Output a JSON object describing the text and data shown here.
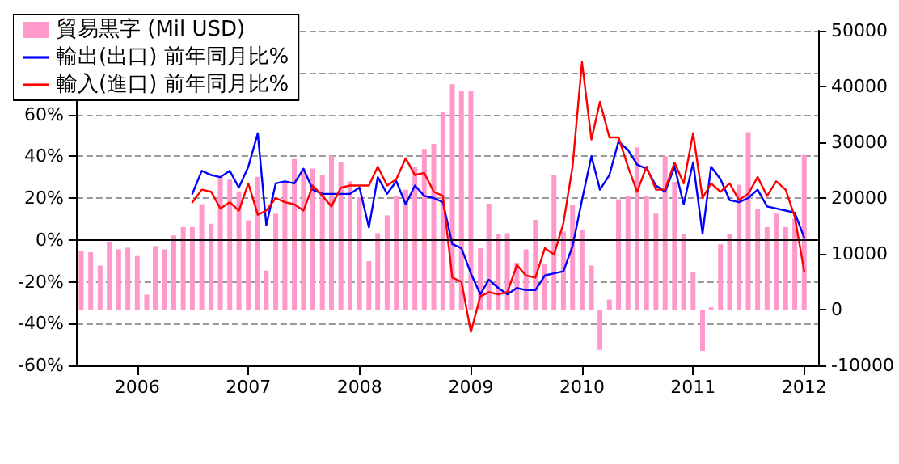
{
  "chart_data": {
    "type": "line",
    "x": [
      "2005-07",
      "2005-08",
      "2005-09",
      "2005-10",
      "2005-11",
      "2005-12",
      "2006-01",
      "2006-02",
      "2006-03",
      "2006-04",
      "2006-05",
      "2006-06",
      "2006-07",
      "2006-08",
      "2006-09",
      "2006-10",
      "2006-11",
      "2006-12",
      "2007-01",
      "2007-02",
      "2007-03",
      "2007-04",
      "2007-05",
      "2007-06",
      "2007-07",
      "2007-08",
      "2007-09",
      "2007-10",
      "2007-11",
      "2007-12",
      "2008-01",
      "2008-02",
      "2008-03",
      "2008-04",
      "2008-05",
      "2008-06",
      "2008-07",
      "2008-08",
      "2008-09",
      "2008-10",
      "2008-11",
      "2008-12",
      "2009-01",
      "2009-02",
      "2009-03",
      "2009-04",
      "2009-05",
      "2009-06",
      "2009-07",
      "2009-08",
      "2009-09",
      "2009-10",
      "2009-11",
      "2009-12",
      "2010-01",
      "2010-02",
      "2010-03",
      "2010-04",
      "2010-05",
      "2010-06",
      "2010-07",
      "2010-08",
      "2010-09",
      "2010-10",
      "2010-11",
      "2010-12",
      "2011-01",
      "2011-02",
      "2011-03",
      "2011-04",
      "2011-05",
      "2011-06",
      "2011-07",
      "2011-08",
      "2011-09",
      "2011-10",
      "2011-11",
      "2011-12",
      "2012-01"
    ],
    "series": [
      {
        "name": "貿易黒字 (Mil USD)",
        "type": "bar",
        "axis": "y2",
        "color": "#ff99cc",
        "values": [
          10600,
          10300,
          7900,
          12200,
          10800,
          11100,
          9600,
          2700,
          11400,
          10800,
          13300,
          14800,
          14800,
          18900,
          15400,
          23800,
          23300,
          21200,
          16000,
          23800,
          7000,
          17200,
          22700,
          27000,
          25300,
          25300,
          24100,
          27600,
          26500,
          23000,
          20100,
          8700,
          13700,
          16900,
          20400,
          21500,
          25600,
          28800,
          29700,
          35500,
          40400,
          39200,
          39200,
          11000,
          19000,
          13500,
          13700,
          8400,
          10800,
          16100,
          8100,
          24100,
          14000,
          18700,
          14200,
          7900,
          -7200,
          1800,
          19800,
          20300,
          29100,
          20400,
          17200,
          27500,
          22900,
          13500,
          6700,
          -7400,
          400,
          11700,
          13500,
          22400,
          31800,
          18000,
          14800,
          17200,
          14800,
          16300,
          27700
        ]
      },
      {
        "name": "輸出(出口) 前年同月比%",
        "color": "#0000ff",
        "values": [
          null,
          null,
          null,
          null,
          null,
          null,
          null,
          null,
          null,
          null,
          null,
          null,
          22,
          33,
          31,
          30,
          33,
          25,
          35,
          51,
          7,
          27,
          28,
          27,
          34,
          24,
          22,
          22,
          22,
          22,
          25,
          6,
          30,
          22,
          28,
          17,
          26,
          21,
          20,
          18,
          -2,
          -4,
          -16,
          -26,
          -19,
          -23,
          -26,
          -23,
          -24,
          -24,
          -17,
          -16,
          -15,
          -3,
          19,
          40,
          24,
          31,
          47,
          43,
          36,
          34,
          26,
          23,
          35,
          17,
          37,
          3,
          35,
          29,
          19,
          18,
          20,
          24,
          16,
          15,
          14,
          13,
          1
        ]
      },
      {
        "name": "輸入(進口) 前年同月比%",
        "color": "#ff0000",
        "values": [
          null,
          null,
          null,
          null,
          null,
          null,
          null,
          null,
          null,
          null,
          null,
          null,
          18,
          24,
          23,
          15,
          18,
          14,
          27,
          12,
          14,
          20,
          18,
          17,
          14,
          26,
          21,
          16,
          25,
          26,
          26,
          26,
          35,
          26,
          29,
          39,
          31,
          32,
          23,
          21,
          -18,
          -20,
          -44,
          -27,
          -25,
          -26,
          -25,
          -12,
          -17,
          -18,
          -4,
          -7,
          8,
          35,
          85,
          48,
          66,
          49,
          49,
          35,
          23,
          35,
          24,
          24,
          37,
          27,
          51,
          20,
          27,
          23,
          27,
          19,
          22,
          30,
          21,
          28,
          24,
          11,
          -15
        ]
      }
    ],
    "xlim": [
      "2005-06-16",
      "2012-02-16"
    ],
    "xticks": [
      {
        "value": "2006-01-01",
        "label": "2006"
      },
      {
        "value": "2007-01-01",
        "label": "2007"
      },
      {
        "value": "2008-01-01",
        "label": "2008"
      },
      {
        "value": "2009-01-01",
        "label": "2009"
      },
      {
        "value": "2010-01-01",
        "label": "2010"
      },
      {
        "value": "2011-01-01",
        "label": "2011"
      },
      {
        "value": "2012-01-01",
        "label": "2012"
      }
    ],
    "ylim": [
      -60,
      100
    ],
    "yticks": [
      {
        "value": -60,
        "label": "-60%"
      },
      {
        "value": -40,
        "label": "-40%"
      },
      {
        "value": -20,
        "label": "-20%"
      },
      {
        "value": 0,
        "label": "0%"
      },
      {
        "value": 20,
        "label": "20%"
      },
      {
        "value": 40,
        "label": "40%"
      },
      {
        "value": 60,
        "label": "60%"
      },
      {
        "value": 80,
        "label": null
      },
      {
        "value": 100,
        "label": null
      }
    ],
    "y2lim": [
      -10000,
      50000
    ],
    "y2ticks": [
      -10000,
      0,
      10000,
      20000,
      30000,
      40000,
      50000
    ],
    "ref_lines": [
      {
        "axis": "y",
        "value": 0,
        "color": "#000000",
        "line_style": "solid"
      }
    ],
    "grid": "y",
    "legend": "top left",
    "marker": "none",
    "line_style": "solid"
  }
}
